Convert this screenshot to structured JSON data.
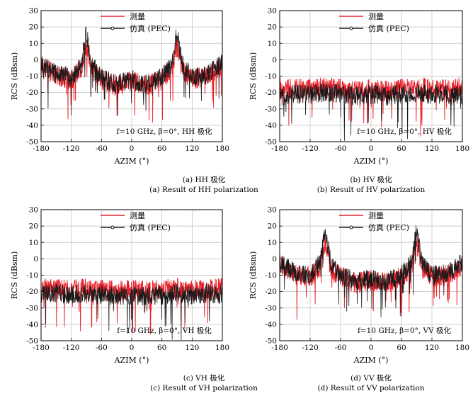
{
  "colors": {
    "measured": "#e8202a",
    "simulated": "#1a1a1a",
    "grid": "#bdbdbd",
    "axis": "#000000"
  },
  "chart_data": [
    {
      "type": "line",
      "xlabel": "AZIM (°)",
      "ylabel": "RCS (dBsm)",
      "xlim": [
        -180,
        180
      ],
      "ylim": [
        -50,
        30
      ],
      "xticks": [
        -180,
        -120,
        -60,
        0,
        60,
        120,
        180
      ],
      "yticks": [
        -50,
        -40,
        -30,
        -20,
        -10,
        0,
        10,
        20,
        30
      ],
      "grid": true,
      "legend_position": "top-right",
      "annotation": "f=10 GHz, β=0°, HH 极化",
      "caption_cn": "(a) HH 极化",
      "caption_en": "(a) Result of HH polarization",
      "series": [
        {
          "name": "测量",
          "color": "#e8202a",
          "x": [
            -180,
            -150,
            -120,
            -100,
            -90,
            -80,
            -60,
            -30,
            0,
            30,
            60,
            80,
            90,
            100,
            120,
            150,
            180
          ],
          "values": [
            -3,
            -10,
            -12,
            -6,
            9,
            -6,
            -12,
            -16,
            -13,
            -16,
            -12,
            -6,
            9,
            -6,
            -12,
            -10,
            -3
          ]
        },
        {
          "name": "仿真 (PEC)",
          "color": "#1a1a1a",
          "x": [
            -180,
            -150,
            -120,
            -100,
            -90,
            -80,
            -60,
            -30,
            0,
            30,
            60,
            80,
            90,
            100,
            120,
            150,
            180
          ],
          "values": [
            -2,
            -9,
            -11,
            -3,
            17,
            -3,
            -11,
            -15,
            -12,
            -15,
            -11,
            -3,
            17,
            -3,
            -11,
            -9,
            -2
          ]
        }
      ]
    },
    {
      "type": "line",
      "xlabel": "AZIM (°)",
      "ylabel": "RCS (dBsm)",
      "xlim": [
        -180,
        180
      ],
      "ylim": [
        -50,
        30
      ],
      "xticks": [
        -180,
        -120,
        -60,
        0,
        60,
        120,
        180
      ],
      "yticks": [
        -50,
        -40,
        -30,
        -20,
        -10,
        0,
        10,
        20,
        30
      ],
      "grid": true,
      "legend_position": "top-right",
      "annotation": "f=10 GHz, β=0°, HV 极化",
      "caption_cn": "(b) HV 极化",
      "caption_en": "(b) Result of HV polarization",
      "series": [
        {
          "name": "测量",
          "color": "#e8202a",
          "x": [
            -180,
            -150,
            -120,
            -90,
            -60,
            -30,
            0,
            30,
            60,
            90,
            120,
            150,
            180
          ],
          "values": [
            -17,
            -18,
            -18,
            -17,
            -18,
            -19,
            -18,
            -19,
            -18,
            -17,
            -18,
            -18,
            -17
          ]
        },
        {
          "name": "仿真 (PEC)",
          "color": "#1a1a1a",
          "x": [
            -180,
            -150,
            -120,
            -90,
            -60,
            -30,
            0,
            30,
            60,
            90,
            120,
            150,
            180
          ],
          "values": [
            -22,
            -21,
            -21,
            -20,
            -21,
            -22,
            -21,
            -22,
            -21,
            -20,
            -21,
            -21,
            -22
          ]
        }
      ]
    },
    {
      "type": "line",
      "xlabel": "AZIM (°)",
      "ylabel": "RCS (dBsm)",
      "xlim": [
        -180,
        180
      ],
      "ylim": [
        -50,
        30
      ],
      "xticks": [
        -180,
        -120,
        -60,
        0,
        60,
        120,
        180
      ],
      "yticks": [
        -50,
        -40,
        -30,
        -20,
        -10,
        0,
        10,
        20,
        30
      ],
      "grid": true,
      "legend_position": "top-right",
      "annotation": "f=10 GHz, β=0°, VH 极化",
      "caption_cn": "(c) VH 极化",
      "caption_en": "(c) Result of VH polarization",
      "series": [
        {
          "name": "测量",
          "color": "#e8202a",
          "x": [
            -180,
            -150,
            -120,
            -90,
            -60,
            -30,
            0,
            30,
            60,
            90,
            120,
            150,
            180
          ],
          "values": [
            -18,
            -19,
            -19,
            -18,
            -19,
            -20,
            -19,
            -20,
            -19,
            -18,
            -19,
            -19,
            -18
          ]
        },
        {
          "name": "仿真 (PEC)",
          "color": "#1a1a1a",
          "x": [
            -180,
            -150,
            -120,
            -90,
            -60,
            -30,
            0,
            30,
            60,
            90,
            120,
            150,
            180
          ],
          "values": [
            -22,
            -21,
            -22,
            -21,
            -22,
            -23,
            -22,
            -23,
            -22,
            -21,
            -22,
            -21,
            -22
          ]
        }
      ]
    },
    {
      "type": "line",
      "xlabel": "AZIM (°)",
      "ylabel": "RCS (dBsm)",
      "xlim": [
        -180,
        180
      ],
      "ylim": [
        -50,
        30
      ],
      "xticks": [
        -180,
        -120,
        -60,
        0,
        60,
        120,
        180
      ],
      "yticks": [
        -50,
        -40,
        -30,
        -20,
        -10,
        0,
        10,
        20,
        30
      ],
      "grid": true,
      "legend_position": "top-right",
      "annotation": "f=10 GHz, β=0°, VV 极化",
      "caption_cn": "(d) VV 极化",
      "caption_en": "(d) Result of VV polarization",
      "series": [
        {
          "name": "测量",
          "color": "#e8202a",
          "x": [
            -180,
            -150,
            -120,
            -100,
            -90,
            -80,
            -60,
            -30,
            0,
            30,
            60,
            80,
            90,
            100,
            120,
            150,
            180
          ],
          "values": [
            -4,
            -10,
            -11,
            -5,
            10,
            -5,
            -11,
            -15,
            -13,
            -15,
            -11,
            -5,
            10,
            -5,
            -11,
            -10,
            -4
          ]
        },
        {
          "name": "仿真 (PEC)",
          "color": "#1a1a1a",
          "x": [
            -180,
            -150,
            -120,
            -100,
            -90,
            -80,
            -60,
            -30,
            0,
            30,
            60,
            80,
            90,
            100,
            120,
            150,
            180
          ],
          "values": [
            -2,
            -9,
            -10,
            -2,
            18,
            -2,
            -10,
            -14,
            -12,
            -14,
            -10,
            -2,
            18,
            -2,
            -10,
            -9,
            -2
          ]
        }
      ]
    }
  ]
}
